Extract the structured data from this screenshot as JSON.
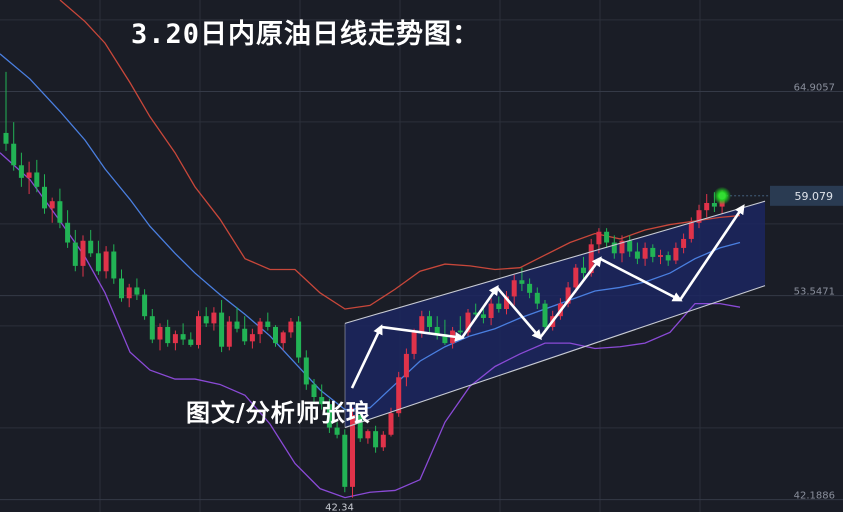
{
  "title": "3.20日内原油日线走势图：",
  "author": "图文/分析师张琅",
  "colors": {
    "background": "#1a1d26",
    "grid": "#2c303b",
    "up": "#e0334a",
    "down": "#22b355",
    "upper_band": "#c8473a",
    "middle_band": "#4a7fe0",
    "lower_band": "#8a4ad6",
    "channel_fill": "#1c2660",
    "channel_lines": "#c8cbd4",
    "arrows": "#ffffff",
    "price_box": "#2a3b52",
    "last_dot": "#33dd33"
  },
  "chart_data": {
    "type": "candlestick",
    "ylim": [
      41.5,
      70
    ],
    "yticks": [
      "64.9057",
      "53.5471",
      "42.1886"
    ],
    "current_price": "59.079",
    "low_label": "42.34",
    "candles": [
      [
        62.6,
        66.0,
        61.6,
        62.0
      ],
      [
        62.0,
        63.2,
        60.5,
        60.8
      ],
      [
        60.8,
        61.5,
        59.6,
        60.1
      ],
      [
        60.1,
        61.0,
        59.2,
        60.4
      ],
      [
        60.4,
        61.1,
        59.3,
        59.6
      ],
      [
        59.6,
        60.3,
        58.1,
        58.4
      ],
      [
        58.4,
        59.0,
        57.6,
        58.8
      ],
      [
        58.8,
        59.5,
        57.3,
        57.6
      ],
      [
        57.6,
        58.3,
        56.2,
        56.5
      ],
      [
        56.5,
        57.2,
        54.9,
        55.2
      ],
      [
        55.2,
        56.9,
        54.6,
        56.6
      ],
      [
        56.6,
        57.2,
        55.7,
        55.9
      ],
      [
        55.9,
        56.6,
        54.7,
        54.9
      ],
      [
        54.9,
        56.3,
        54.5,
        56.0
      ],
      [
        56.0,
        56.4,
        54.2,
        54.5
      ],
      [
        54.5,
        55.0,
        53.2,
        53.4
      ],
      [
        53.4,
        54.2,
        52.9,
        54.0
      ],
      [
        54.0,
        54.5,
        53.3,
        53.6
      ],
      [
        53.6,
        53.9,
        52.2,
        52.4
      ],
      [
        52.4,
        52.8,
        50.9,
        51.1
      ],
      [
        51.1,
        52.0,
        50.5,
        51.8
      ],
      [
        51.8,
        52.2,
        50.7,
        50.9
      ],
      [
        50.9,
        51.6,
        50.5,
        51.4
      ],
      [
        51.4,
        52.0,
        50.8,
        51.1
      ],
      [
        51.1,
        51.5,
        50.7,
        50.8
      ],
      [
        50.8,
        52.7,
        50.6,
        52.4
      ],
      [
        52.4,
        52.9,
        51.8,
        52.0
      ],
      [
        52.0,
        52.9,
        51.6,
        52.6
      ],
      [
        52.6,
        53.3,
        50.4,
        50.7
      ],
      [
        50.7,
        52.4,
        50.5,
        52.1
      ],
      [
        52.1,
        52.9,
        51.5,
        51.7
      ],
      [
        51.7,
        52.4,
        50.8,
        51.0
      ],
      [
        51.0,
        51.7,
        50.6,
        51.4
      ],
      [
        51.4,
        52.3,
        50.9,
        52.1
      ],
      [
        52.1,
        52.6,
        51.6,
        51.8
      ],
      [
        51.8,
        51.9,
        50.7,
        50.9
      ],
      [
        50.9,
        51.6,
        50.5,
        51.5
      ],
      [
        51.5,
        52.3,
        51.2,
        52.1
      ],
      [
        52.1,
        52.4,
        49.8,
        50.1
      ],
      [
        50.1,
        50.5,
        48.3,
        48.6
      ],
      [
        48.6,
        48.9,
        47.6,
        47.9
      ],
      [
        47.9,
        48.6,
        47.2,
        47.5
      ],
      [
        47.5,
        47.8,
        45.9,
        46.2
      ],
      [
        46.2,
        46.5,
        45.6,
        45.8
      ],
      [
        45.8,
        46.1,
        42.6,
        42.9
      ],
      [
        42.9,
        47.3,
        42.3,
        46.9
      ],
      [
        46.9,
        47.0,
        45.4,
        45.6
      ],
      [
        45.6,
        46.1,
        45.3,
        46.0
      ],
      [
        46.0,
        46.3,
        44.8,
        45.1
      ],
      [
        45.1,
        46.0,
        44.9,
        45.8
      ],
      [
        45.8,
        47.3,
        45.7,
        47.0
      ],
      [
        47.0,
        49.3,
        46.8,
        49.0
      ],
      [
        49.0,
        50.6,
        48.5,
        50.3
      ],
      [
        50.3,
        51.7,
        50.0,
        51.5
      ],
      [
        51.5,
        52.7,
        51.2,
        52.4
      ],
      [
        52.4,
        52.7,
        51.5,
        51.8
      ],
      [
        51.8,
        52.4,
        51.1,
        51.4
      ],
      [
        51.4,
        52.2,
        50.8,
        50.9
      ],
      [
        50.9,
        51.8,
        50.6,
        51.6
      ],
      [
        51.6,
        52.4,
        51.2,
        51.5
      ],
      [
        51.5,
        52.8,
        51.3,
        52.6
      ],
      [
        52.6,
        53.1,
        52.2,
        52.5
      ],
      [
        52.5,
        53.0,
        52.0,
        52.3
      ],
      [
        52.3,
        53.4,
        51.9,
        53.1
      ],
      [
        53.1,
        53.5,
        52.6,
        52.8
      ],
      [
        52.8,
        53.8,
        52.5,
        53.5
      ],
      [
        53.5,
        54.7,
        53.0,
        54.4
      ],
      [
        54.4,
        55.1,
        53.8,
        54.2
      ],
      [
        54.2,
        54.5,
        53.4,
        53.7
      ],
      [
        53.7,
        54.0,
        52.8,
        53.1
      ],
      [
        53.1,
        53.3,
        51.5,
        51.8
      ],
      [
        51.8,
        52.7,
        51.6,
        52.4
      ],
      [
        52.4,
        53.4,
        52.2,
        53.1
      ],
      [
        53.1,
        54.3,
        52.9,
        54.0
      ],
      [
        54.0,
        55.3,
        53.7,
        55.1
      ],
      [
        55.1,
        55.7,
        54.5,
        54.8
      ],
      [
        54.8,
        56.7,
        54.6,
        56.4
      ],
      [
        56.4,
        57.3,
        55.9,
        57.1
      ],
      [
        57.1,
        57.3,
        56.2,
        56.5
      ],
      [
        56.5,
        56.9,
        55.6,
        55.9
      ],
      [
        55.9,
        56.9,
        55.4,
        56.6
      ],
      [
        56.6,
        56.9,
        55.7,
        56.0
      ],
      [
        56.0,
        56.5,
        55.3,
        55.6
      ],
      [
        55.6,
        56.5,
        55.2,
        56.2
      ],
      [
        56.2,
        56.4,
        55.4,
        55.7
      ],
      [
        55.7,
        56.1,
        55.3,
        55.8
      ],
      [
        55.8,
        56.0,
        55.2,
        55.5
      ],
      [
        55.5,
        56.5,
        55.3,
        56.2
      ],
      [
        56.2,
        57.0,
        55.9,
        56.7
      ],
      [
        56.7,
        57.9,
        56.5,
        57.6
      ],
      [
        57.6,
        58.6,
        57.3,
        58.3
      ],
      [
        58.3,
        59.2,
        57.9,
        58.7
      ],
      [
        58.7,
        59.3,
        58.2,
        58.5
      ],
      [
        58.5,
        59.4,
        58.1,
        59.1
      ]
    ],
    "bollinger": {
      "upper": [
        [
          60,
          70.0
        ],
        [
          85,
          68.8
        ],
        [
          105,
          67.6
        ],
        [
          130,
          65.4
        ],
        [
          150,
          63.5
        ],
        [
          175,
          61.5
        ],
        [
          195,
          59.6
        ],
        [
          220,
          57.8
        ],
        [
          245,
          55.6
        ],
        [
          270,
          55.0
        ],
        [
          295,
          55.0
        ],
        [
          320,
          53.7
        ],
        [
          345,
          52.8
        ],
        [
          370,
          53.0
        ],
        [
          395,
          53.9
        ],
        [
          420,
          54.9
        ],
        [
          445,
          55.3
        ],
        [
          470,
          55.2
        ],
        [
          495,
          55.0
        ],
        [
          520,
          55.1
        ],
        [
          545,
          55.8
        ],
        [
          570,
          56.5
        ],
        [
          595,
          57.0
        ],
        [
          620,
          56.7
        ],
        [
          645,
          57.2
        ],
        [
          670,
          57.5
        ],
        [
          695,
          57.7
        ],
        [
          720,
          57.9
        ],
        [
          740,
          58.0
        ]
      ],
      "middle": [
        [
          0,
          67.0
        ],
        [
          30,
          65.6
        ],
        [
          60,
          63.8
        ],
        [
          85,
          62.2
        ],
        [
          105,
          60.6
        ],
        [
          130,
          58.9
        ],
        [
          150,
          57.4
        ],
        [
          175,
          55.9
        ],
        [
          195,
          54.8
        ],
        [
          220,
          53.6
        ],
        [
          245,
          52.5
        ],
        [
          270,
          51.3
        ],
        [
          295,
          49.8
        ],
        [
          320,
          48.3
        ],
        [
          345,
          47.2
        ],
        [
          370,
          47.3
        ],
        [
          395,
          48.6
        ],
        [
          420,
          49.9
        ],
        [
          445,
          50.7
        ],
        [
          470,
          51.3
        ],
        [
          495,
          51.7
        ],
        [
          520,
          52.3
        ],
        [
          545,
          52.8
        ],
        [
          570,
          53.3
        ],
        [
          595,
          53.8
        ],
        [
          620,
          54.0
        ],
        [
          645,
          54.3
        ],
        [
          670,
          54.8
        ],
        [
          695,
          55.6
        ],
        [
          720,
          56.2
        ],
        [
          740,
          56.5
        ]
      ],
      "lower": [
        [
          0,
          61.5
        ],
        [
          30,
          60.0
        ],
        [
          60,
          57.7
        ],
        [
          85,
          55.7
        ],
        [
          105,
          53.7
        ],
        [
          130,
          50.4
        ],
        [
          150,
          49.4
        ],
        [
          175,
          48.9
        ],
        [
          195,
          48.9
        ],
        [
          220,
          48.6
        ],
        [
          245,
          48.0
        ],
        [
          270,
          46.4
        ],
        [
          295,
          44.2
        ],
        [
          320,
          42.8
        ],
        [
          345,
          42.3
        ],
        [
          370,
          42.6
        ],
        [
          395,
          42.7
        ],
        [
          420,
          43.3
        ],
        [
          445,
          46.5
        ],
        [
          470,
          48.5
        ],
        [
          495,
          49.6
        ],
        [
          520,
          50.3
        ],
        [
          545,
          50.9
        ],
        [
          570,
          50.9
        ],
        [
          595,
          50.6
        ],
        [
          620,
          50.7
        ],
        [
          645,
          50.9
        ],
        [
          670,
          51.5
        ],
        [
          695,
          53.1
        ],
        [
          720,
          53.1
        ],
        [
          740,
          52.9
        ]
      ]
    },
    "channel": {
      "upper": [
        [
          345,
          52.0
        ],
        [
          765,
          58.8
        ]
      ],
      "lower": [
        [
          345,
          46.2
        ],
        [
          765,
          54.1
        ]
      ]
    },
    "arrows": [
      [
        [
          352,
          48.4
        ],
        [
          381,
          51.8
        ]
      ],
      [
        [
          381,
          51.8
        ],
        [
          462,
          51.2
        ]
      ],
      [
        [
          462,
          51.2
        ],
        [
          497,
          54.0
        ]
      ],
      [
        [
          497,
          54.0
        ],
        [
          540,
          51.2
        ]
      ],
      [
        [
          540,
          51.2
        ],
        [
          600,
          55.6
        ]
      ],
      [
        [
          600,
          55.6
        ],
        [
          680,
          53.3
        ]
      ],
      [
        [
          680,
          53.3
        ],
        [
          743,
          58.5
        ]
      ]
    ]
  }
}
